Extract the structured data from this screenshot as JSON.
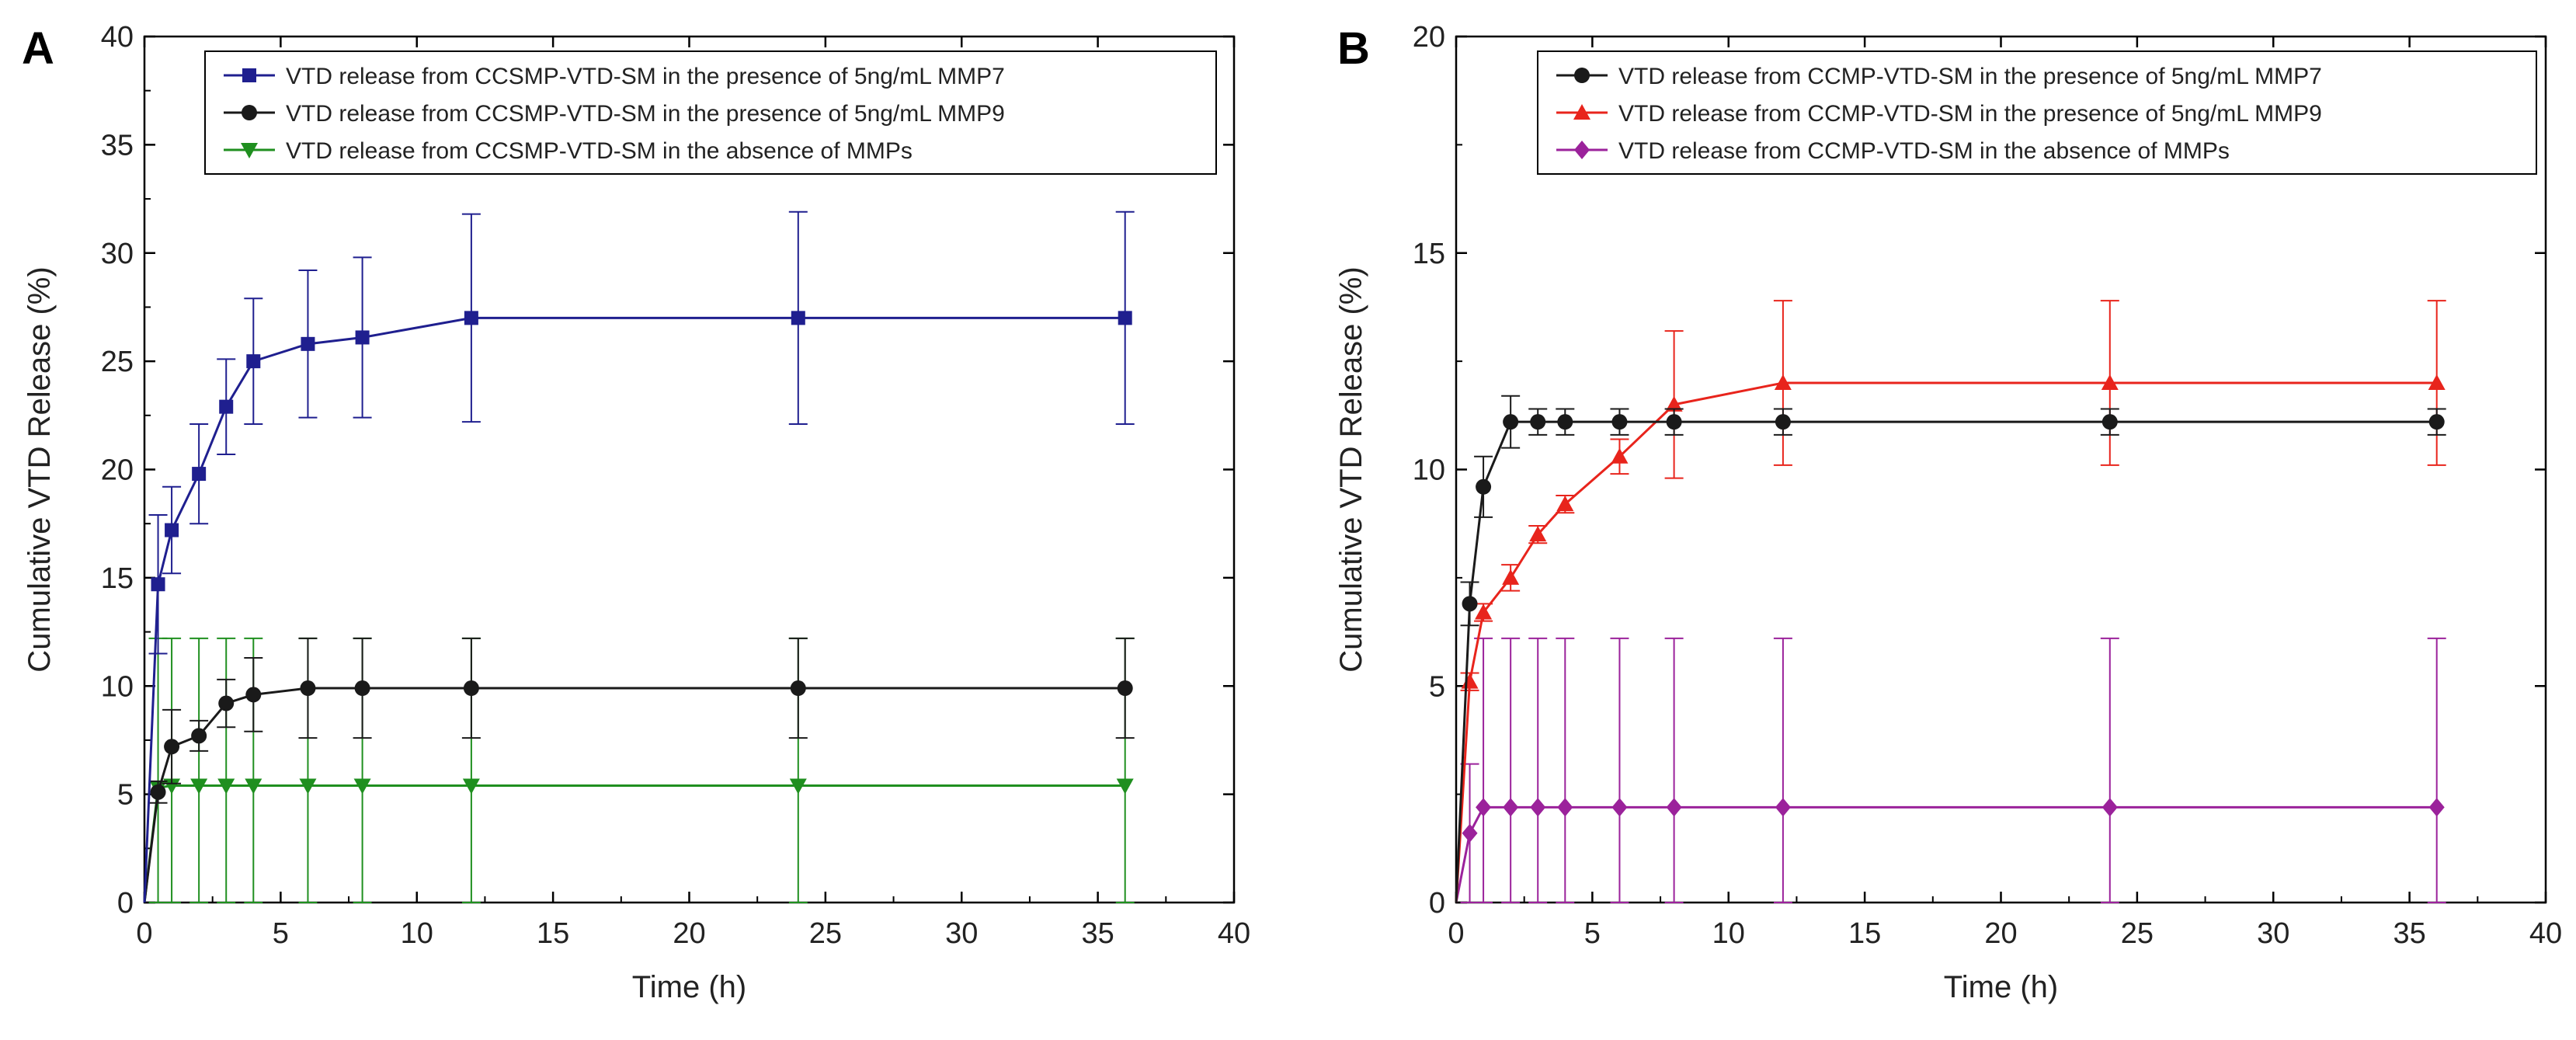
{
  "chart_data": [
    {
      "type": "line",
      "panel_label": "A",
      "xlabel": "Time (h)",
      "ylabel": "Cumulative VTD Release (%)",
      "xlim": [
        0,
        40
      ],
      "ylim": [
        0,
        40
      ],
      "xticks": [
        0,
        5,
        10,
        15,
        20,
        25,
        30,
        35,
        40
      ],
      "yticks": [
        0,
        5,
        10,
        15,
        20,
        25,
        30,
        35,
        40
      ],
      "xtick_labels": [
        "0",
        "5",
        "10",
        "15",
        "20",
        "25",
        "30",
        "35",
        "40"
      ],
      "ytick_labels": [
        "0",
        "5",
        "10",
        "15",
        "20",
        "25",
        "30",
        "35",
        "40"
      ],
      "x": [
        0,
        0.5,
        1,
        2,
        3,
        4,
        6,
        8,
        12,
        24,
        36
      ],
      "grid": false,
      "legend_position": "top-right",
      "series": [
        {
          "name": "VTD release from CCSMP-VTD-SM in the presence of 5ng/mL MMP7",
          "color": "#1f1f8f",
          "marker": "square",
          "values": [
            0,
            14.7,
            17.2,
            19.8,
            22.9,
            25.0,
            25.8,
            26.1,
            27.0,
            27.0,
            27.0
          ],
          "errors": [
            0,
            3.2,
            2.0,
            2.3,
            2.2,
            2.9,
            3.4,
            3.7,
            4.8,
            4.9,
            4.9
          ]
        },
        {
          "name": "VTD release from CCSMP-VTD-SM in the presence of 5ng/mL MMP9",
          "color": "#1a1a1a",
          "marker": "circle",
          "values": [
            0,
            5.1,
            7.2,
            7.7,
            9.2,
            9.6,
            9.9,
            9.9,
            9.9,
            9.9,
            9.9
          ],
          "errors": [
            0,
            0.5,
            1.7,
            0.7,
            1.1,
            1.7,
            2.3,
            2.3,
            2.3,
            2.3,
            2.3
          ]
        },
        {
          "name": "VTD release from CCSMP-VTD-SM in the absence of MMPs",
          "color": "#1f8f1f",
          "marker": "triangle-down",
          "values": [
            0,
            5.3,
            5.4,
            5.4,
            5.4,
            5.4,
            5.4,
            5.4,
            5.4,
            5.4,
            5.4
          ],
          "errors": [
            0,
            6.9,
            6.8,
            6.8,
            6.8,
            6.8,
            6.8,
            6.8,
            6.8,
            6.8,
            6.8
          ]
        }
      ]
    },
    {
      "type": "line",
      "panel_label": "B",
      "xlabel": "Time (h)",
      "ylabel": "Cumulative VTD Release (%)",
      "xlim": [
        0,
        40
      ],
      "ylim": [
        0,
        20
      ],
      "xticks": [
        0,
        5,
        10,
        15,
        20,
        25,
        30,
        35,
        40
      ],
      "yticks": [
        0,
        5,
        10,
        15,
        20
      ],
      "xtick_labels": [
        "0",
        "5",
        "10",
        "15",
        "20",
        "25",
        "30",
        "35",
        "40"
      ],
      "ytick_labels": [
        "0",
        "5",
        "10",
        "15",
        "20"
      ],
      "x": [
        0,
        0.5,
        1,
        2,
        3,
        4,
        6,
        8,
        12,
        24,
        36
      ],
      "grid": false,
      "legend_position": "top-right",
      "series": [
        {
          "name": "VTD release from CCMP-VTD-SM in the presence of 5ng/mL MMP7",
          "color": "#1a1a1a",
          "marker": "circle",
          "values": [
            0,
            6.9,
            9.6,
            11.1,
            11.1,
            11.1,
            11.1,
            11.1,
            11.1,
            11.1,
            11.1
          ],
          "errors": [
            0,
            0.5,
            0.7,
            0.6,
            0.3,
            0.3,
            0.3,
            0.3,
            0.3,
            0.3,
            0.3
          ]
        },
        {
          "name": "VTD release from CCMP-VTD-SM in the presence of 5ng/mL MMP9",
          "color": "#e8241c",
          "marker": "triangle-up",
          "values": [
            0,
            5.1,
            6.7,
            7.5,
            8.5,
            9.2,
            10.3,
            11.5,
            12.0,
            12.0,
            12.0
          ],
          "errors": [
            0,
            0.2,
            0.2,
            0.3,
            0.2,
            0.2,
            0.4,
            1.7,
            1.9,
            1.9,
            1.9
          ]
        },
        {
          "name": "VTD release from CCMP-VTD-SM in the absence of MMPs",
          "color": "#9b229b",
          "marker": "diamond",
          "values": [
            0,
            1.6,
            2.2,
            2.2,
            2.2,
            2.2,
            2.2,
            2.2,
            2.2,
            2.2,
            2.2
          ],
          "errors": [
            0,
            1.6,
            3.9,
            3.9,
            3.9,
            3.9,
            3.9,
            3.9,
            3.9,
            3.9,
            3.9
          ]
        }
      ]
    }
  ]
}
